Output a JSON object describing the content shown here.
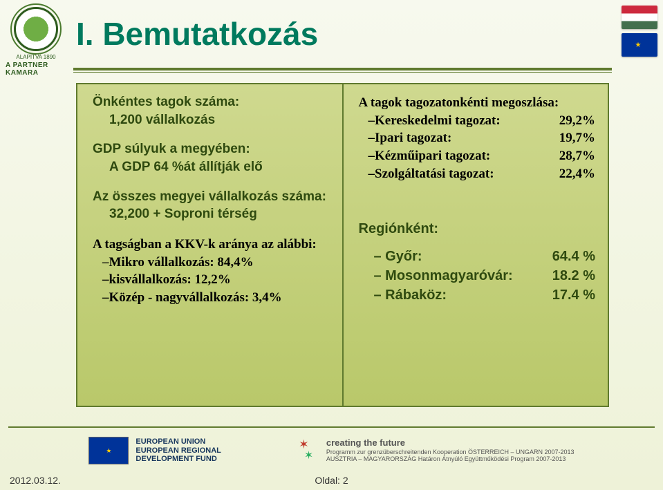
{
  "logo": {
    "small_line": "ALAPÍTVA 1890",
    "partner": "A PARTNER KAMARA"
  },
  "title": "I. Bemutatkozás",
  "left": {
    "voluntary": {
      "head": "Önkéntes tagok száma:",
      "value": "1,200 vállalkozás"
    },
    "gdp": {
      "head": "GDP súlyuk a megyében:",
      "value": "A GDP 64 %át állítják elő"
    },
    "total": {
      "head": "Az összes megyei vállalkozás száma:",
      "value": "32,200 + Soproni térség"
    },
    "kkv": {
      "head": "A tagságban a KKV-k aránya az alábbi:",
      "rows": [
        "–Mikro vállalkozás: 84,4%",
        "–kisvállalkozás:       12,2%",
        "–Közép - nagyvállalkozás:  3,4%"
      ]
    }
  },
  "right": {
    "tag_head": "A tagok tagozatonkénti megoszlása:",
    "tag_rows": [
      {
        "label": "–Kereskedelmi tagozat:",
        "val": "29,2%"
      },
      {
        "label": "–Ipari tagozat:",
        "val": "19,7%"
      },
      {
        "label": "–Kézműipari tagozat:",
        "val": "28,7%"
      },
      {
        "label": "–Szolgáltatási tagozat:",
        "val": "22,4%"
      }
    ],
    "reg_head": "Regiónként:",
    "reg_rows": [
      {
        "label": "– Győr:",
        "val": "64.4 %"
      },
      {
        "label": "– Mosonmagyaróvár:",
        "val": "18.2 %"
      },
      {
        "label": "– Rábaköz:",
        "val": "17.4 %"
      }
    ]
  },
  "footer": {
    "eu_lines": [
      "EUROPEAN UNION",
      "EUROPEAN REGIONAL",
      "DEVELOPMENT FUND"
    ],
    "ctf_title": "creating the future",
    "ctf_lines": [
      "Programm zur grenzüberschreitenden Kooperation ÖSTERREICH – UNGARN 2007-2013",
      "AUSZTRIA – MAGYARORSZÁG Határon Átnyúló Együttműködési Program 2007-2013"
    ],
    "date": "2012.03.12.",
    "page": "Oldal: 2"
  },
  "colors": {
    "title": "#007a5e",
    "rule": "#5f7a2e",
    "panel_top": "#cfd98f",
    "panel_bot": "#b9c86a",
    "heading_green": "#2f4a0f"
  }
}
